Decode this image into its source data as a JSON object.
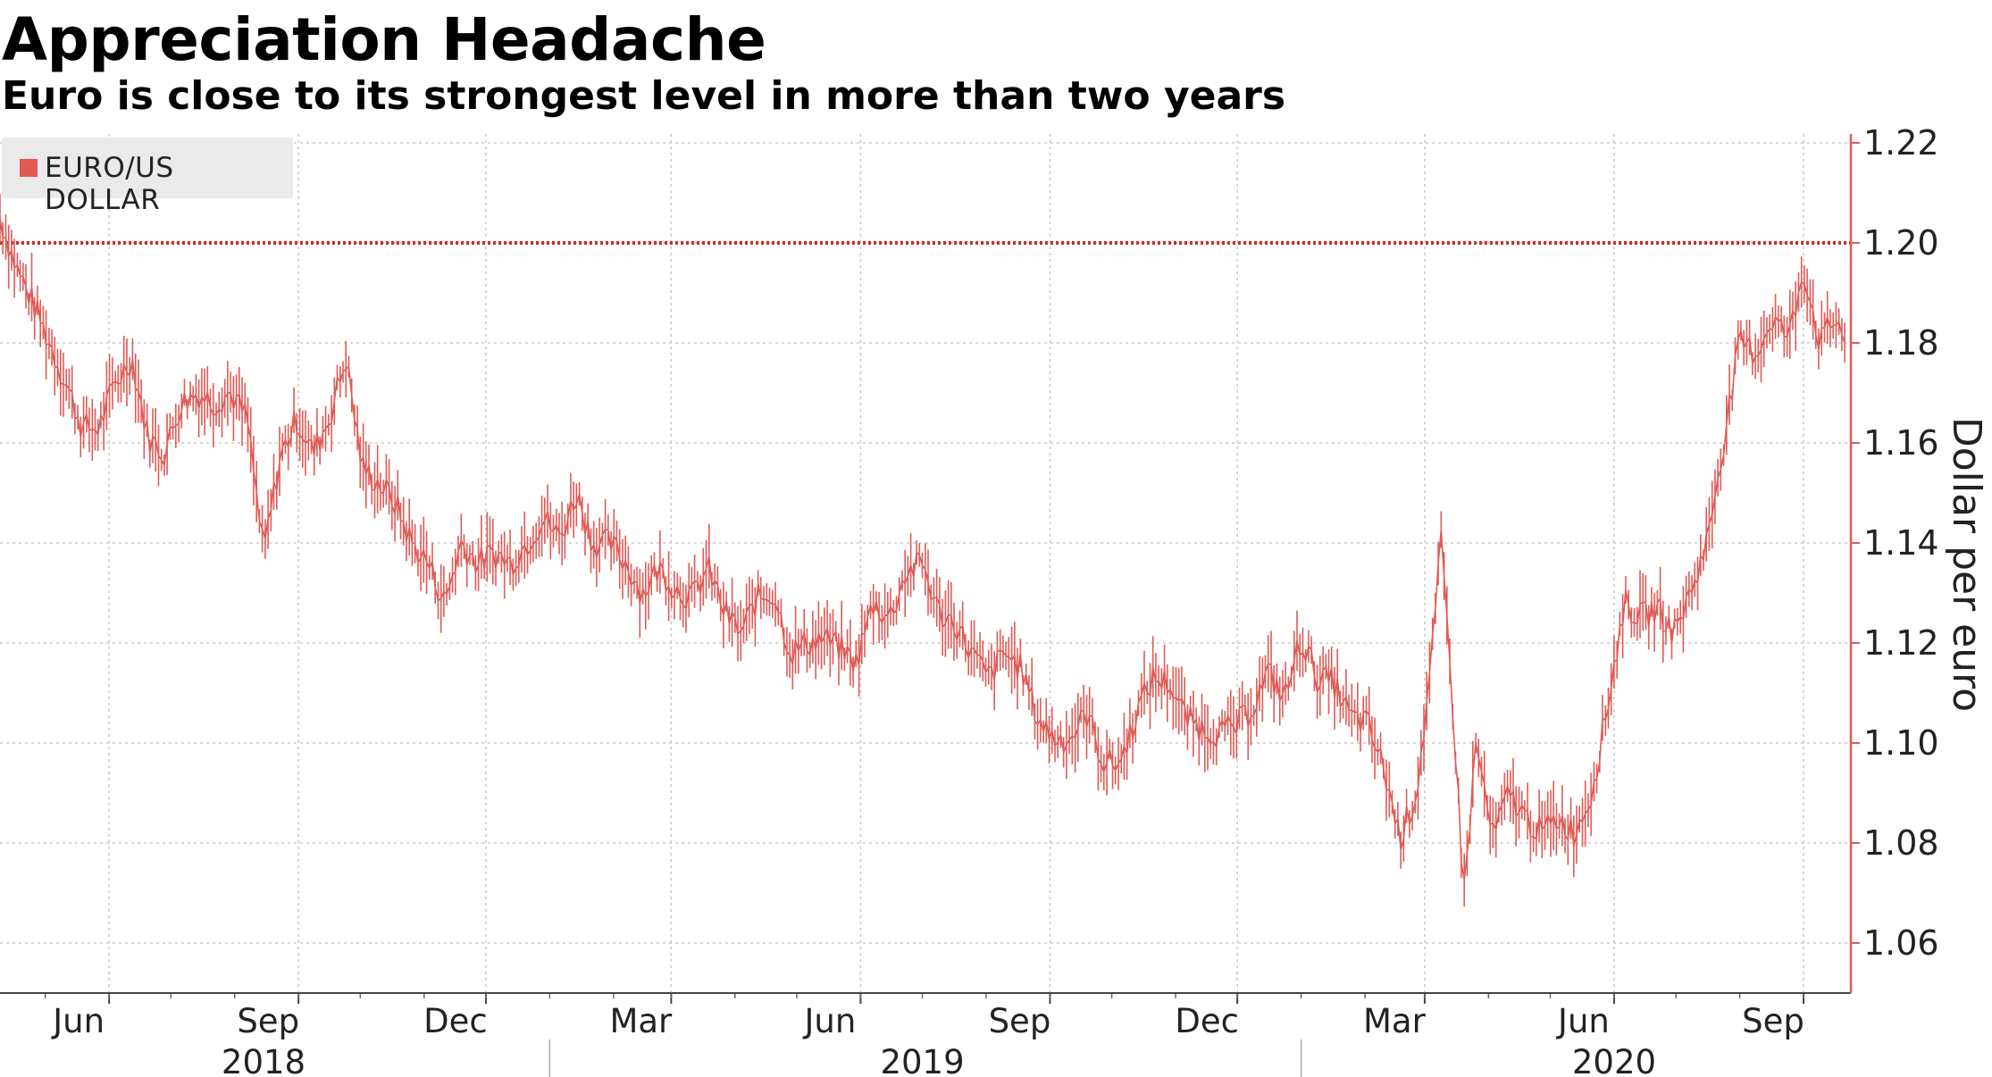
{
  "header": {
    "title": "Appreciation Headache",
    "subtitle": "Euro is close to its strongest level in more than two years"
  },
  "legend": {
    "label": "EURO/US DOLLAR"
  },
  "colors": {
    "series": "#e05a55",
    "reference": "#d62b22",
    "grid": "#c8c8c8",
    "axis": "#e05a55"
  },
  "chart_data": {
    "type": "line",
    "style": "bar-ohlc",
    "title": "Appreciation Headache",
    "subtitle": "Euro is close to its strongest level in more than two years",
    "ylabel": "Dollar per euro",
    "xlabel": "",
    "ylim": [
      1.05,
      1.22
    ],
    "xlim": [
      "2018-04-09",
      "2020-09-24"
    ],
    "y_ticks": [
      1.06,
      1.08,
      1.1,
      1.12,
      1.14,
      1.16,
      1.18,
      1.2,
      1.22
    ],
    "y_tick_labels": [
      "1.06",
      "1.08",
      "1.10",
      "1.12",
      "1.14",
      "1.16",
      "1.18",
      "1.20",
      "1.22"
    ],
    "x_ticks": [
      {
        "label": "Jun",
        "date": "2018-06-01"
      },
      {
        "label": "Sep",
        "date": "2018-09-01"
      },
      {
        "label": "Dec",
        "date": "2018-12-01"
      },
      {
        "label": "Mar",
        "date": "2019-03-01"
      },
      {
        "label": "Jun",
        "date": "2019-06-01"
      },
      {
        "label": "Sep",
        "date": "2019-09-01"
      },
      {
        "label": "Dec",
        "date": "2019-12-01"
      },
      {
        "label": "Mar",
        "date": "2020-03-01"
      },
      {
        "label": "Jun",
        "date": "2020-06-01"
      },
      {
        "label": "Sep",
        "date": "2020-09-01"
      }
    ],
    "year_labels": [
      {
        "label": "2018",
        "date": "2018-08-15"
      },
      {
        "label": "2019",
        "date": "2019-07-01"
      },
      {
        "label": "2020",
        "date": "2020-06-01"
      }
    ],
    "reference_line": {
      "y": 1.2,
      "style": "dotted"
    },
    "legend": "top-left",
    "grid": true,
    "series": [
      {
        "name": "EURO/US DOLLAR",
        "points": [
          [
            "2018-04-09",
            1.205
          ],
          [
            "2018-04-17",
            1.195
          ],
          [
            "2018-04-25",
            1.188
          ],
          [
            "2018-05-03",
            1.18
          ],
          [
            "2018-05-11",
            1.172
          ],
          [
            "2018-05-19",
            1.163
          ],
          [
            "2018-05-27",
            1.163
          ],
          [
            "2018-06-04",
            1.172
          ],
          [
            "2018-06-12",
            1.177
          ],
          [
            "2018-06-20",
            1.161
          ],
          [
            "2018-06-28",
            1.158
          ],
          [
            "2018-07-06",
            1.168
          ],
          [
            "2018-07-14",
            1.17
          ],
          [
            "2018-07-22",
            1.168
          ],
          [
            "2018-07-30",
            1.17
          ],
          [
            "2018-08-07",
            1.165
          ],
          [
            "2018-08-15",
            1.138
          ],
          [
            "2018-08-23",
            1.157
          ],
          [
            "2018-08-31",
            1.165
          ],
          [
            "2018-09-08",
            1.158
          ],
          [
            "2018-09-16",
            1.165
          ],
          [
            "2018-09-24",
            1.177
          ],
          [
            "2018-10-02",
            1.155
          ],
          [
            "2018-10-10",
            1.152
          ],
          [
            "2018-10-18",
            1.148
          ],
          [
            "2018-10-26",
            1.14
          ],
          [
            "2018-11-03",
            1.136
          ],
          [
            "2018-11-11",
            1.128
          ],
          [
            "2018-11-19",
            1.14
          ],
          [
            "2018-11-27",
            1.136
          ],
          [
            "2018-12-05",
            1.138
          ],
          [
            "2018-12-13",
            1.136
          ],
          [
            "2018-12-21",
            1.14
          ],
          [
            "2018-12-29",
            1.145
          ],
          [
            "2019-01-06",
            1.141
          ],
          [
            "2019-01-14",
            1.15
          ],
          [
            "2019-01-22",
            1.14
          ],
          [
            "2019-01-30",
            1.14
          ],
          [
            "2019-02-07",
            1.136
          ],
          [
            "2019-02-15",
            1.13
          ],
          [
            "2019-02-23",
            1.135
          ],
          [
            "2019-03-03",
            1.131
          ],
          [
            "2019-03-11",
            1.129
          ],
          [
            "2019-03-19",
            1.135
          ],
          [
            "2019-03-27",
            1.126
          ],
          [
            "2019-04-04",
            1.122
          ],
          [
            "2019-04-12",
            1.129
          ],
          [
            "2019-04-20",
            1.13
          ],
          [
            "2019-04-28",
            1.118
          ],
          [
            "2019-05-06",
            1.12
          ],
          [
            "2019-05-14",
            1.121
          ],
          [
            "2019-05-22",
            1.119
          ],
          [
            "2019-05-30",
            1.116
          ],
          [
            "2019-06-07",
            1.128
          ],
          [
            "2019-06-15",
            1.125
          ],
          [
            "2019-06-23",
            1.134
          ],
          [
            "2019-07-01",
            1.136
          ],
          [
            "2019-07-09",
            1.126
          ],
          [
            "2019-07-17",
            1.124
          ],
          [
            "2019-07-25",
            1.118
          ],
          [
            "2019-08-02",
            1.113
          ],
          [
            "2019-08-10",
            1.118
          ],
          [
            "2019-08-18",
            1.115
          ],
          [
            "2019-08-26",
            1.105
          ],
          [
            "2019-09-03",
            1.101
          ],
          [
            "2019-09-11",
            1.101
          ],
          [
            "2019-09-19",
            1.106
          ],
          [
            "2019-09-27",
            1.096
          ],
          [
            "2019-10-05",
            1.096
          ],
          [
            "2019-10-13",
            1.106
          ],
          [
            "2019-10-21",
            1.113
          ],
          [
            "2019-10-29",
            1.112
          ],
          [
            "2019-11-06",
            1.105
          ],
          [
            "2019-11-14",
            1.103
          ],
          [
            "2019-11-22",
            1.102
          ],
          [
            "2019-11-30",
            1.103
          ],
          [
            "2019-12-08",
            1.107
          ],
          [
            "2019-12-16",
            1.114
          ],
          [
            "2019-12-24",
            1.109
          ],
          [
            "2020-01-01",
            1.121
          ],
          [
            "2020-01-09",
            1.113
          ],
          [
            "2020-01-17",
            1.112
          ],
          [
            "2020-01-25",
            1.105
          ],
          [
            "2020-02-02",
            1.104
          ],
          [
            "2020-02-10",
            1.095
          ],
          [
            "2020-02-18",
            1.081
          ],
          [
            "2020-02-26",
            1.09
          ],
          [
            "2020-03-04",
            1.115
          ],
          [
            "2020-03-09",
            1.14
          ],
          [
            "2020-03-14",
            1.112
          ],
          [
            "2020-03-20",
            1.07
          ],
          [
            "2020-03-26",
            1.1
          ],
          [
            "2020-04-03",
            1.081
          ],
          [
            "2020-04-11",
            1.09
          ],
          [
            "2020-04-19",
            1.085
          ],
          [
            "2020-04-27",
            1.082
          ],
          [
            "2020-05-05",
            1.085
          ],
          [
            "2020-05-13",
            1.082
          ],
          [
            "2020-05-21",
            1.09
          ],
          [
            "2020-05-29",
            1.108
          ],
          [
            "2020-06-06",
            1.128
          ],
          [
            "2020-06-14",
            1.125
          ],
          [
            "2020-06-22",
            1.127
          ],
          [
            "2020-06-30",
            1.122
          ],
          [
            "2020-07-08",
            1.13
          ],
          [
            "2020-07-16",
            1.14
          ],
          [
            "2020-07-24",
            1.16
          ],
          [
            "2020-08-01",
            1.18
          ],
          [
            "2020-08-09",
            1.178
          ],
          [
            "2020-08-17",
            1.185
          ],
          [
            "2020-08-25",
            1.181
          ],
          [
            "2020-09-01",
            1.195
          ],
          [
            "2020-09-09",
            1.18
          ],
          [
            "2020-09-17",
            1.185
          ],
          [
            "2020-09-22",
            1.18
          ]
        ]
      }
    ]
  }
}
